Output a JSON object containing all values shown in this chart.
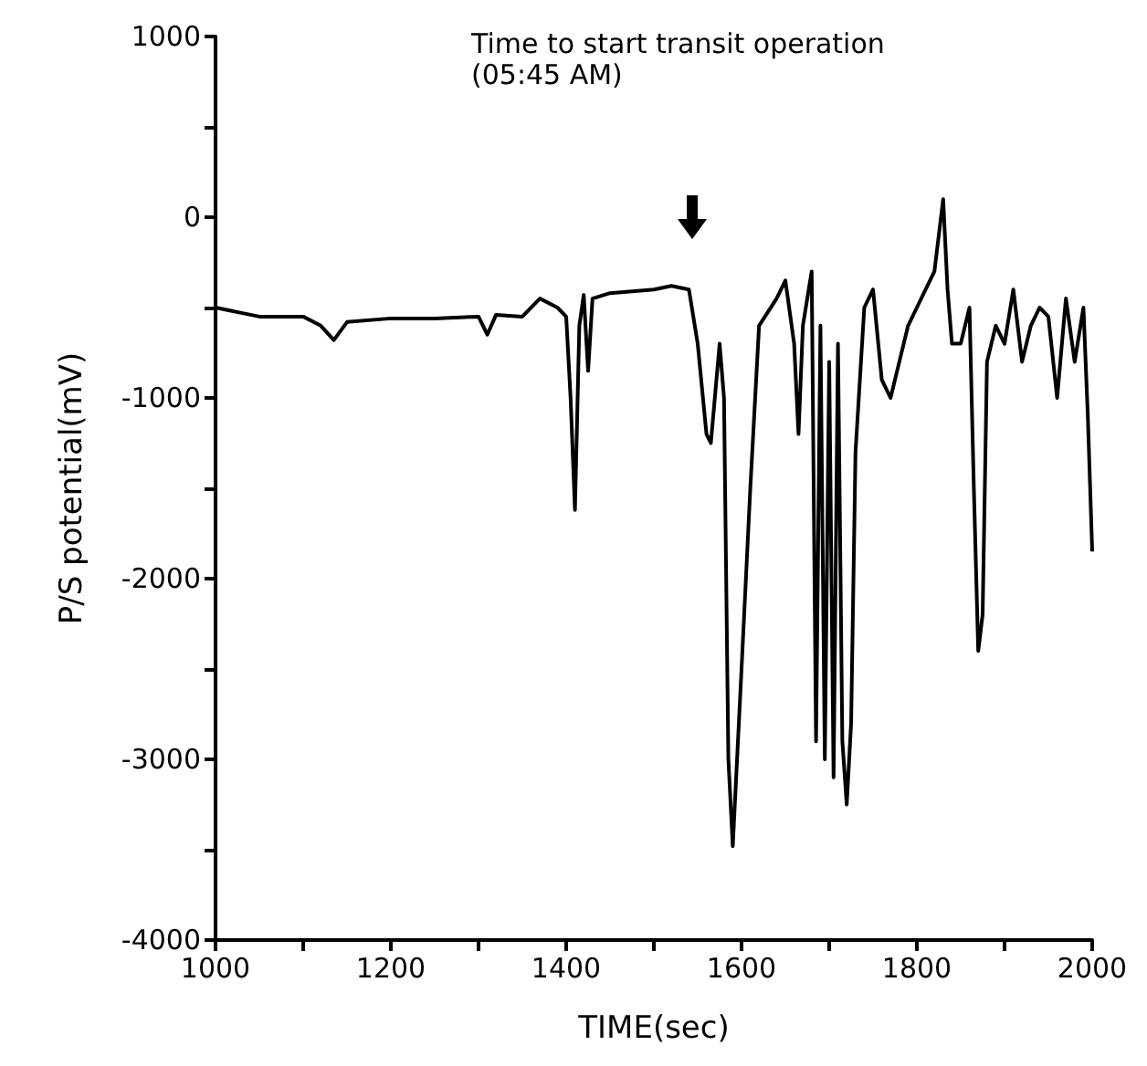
{
  "chart_data": {
    "type": "line",
    "xlabel": "TIME(sec)",
    "ylabel": "P/S potential(mV)",
    "annotations": [
      "Time to start transit operation\n(05:45 AM)"
    ],
    "xlim": [
      1000,
      2000
    ],
    "xticks": [
      1000,
      {
        "value": 1100,
        "label": null
      },
      1200,
      {
        "value": 1300,
        "label": null
      },
      1400,
      {
        "value": 1500,
        "label": null
      },
      1600,
      {
        "value": 1700,
        "label": null
      },
      1800,
      {
        "value": 1900,
        "label": null
      },
      2000
    ],
    "ylim": [
      -4000,
      1000
    ],
    "yticks": [
      -4000,
      {
        "value": -3500,
        "label": null
      },
      -3000,
      {
        "value": -2500,
        "label": null
      },
      -2000,
      {
        "value": -1500,
        "label": null
      },
      -1000,
      {
        "value": -500,
        "label": null
      },
      0,
      {
        "value": 500,
        "label": null
      },
      1000
    ],
    "grid": false,
    "marker": "none",
    "line_style": "solid",
    "series": [
      {
        "color": "#000000",
        "x": [
          1000,
          1050,
          1100,
          1120,
          1135,
          1150,
          1200,
          1250,
          1300,
          1310,
          1320,
          1350,
          1370,
          1390,
          1400,
          1405,
          1410,
          1415,
          1420,
          1425,
          1430,
          1450,
          1500,
          1520,
          1540,
          1550,
          1560,
          1565,
          1575,
          1580,
          1585,
          1590,
          1600,
          1610,
          1620,
          1640,
          1650,
          1660,
          1665,
          1670,
          1680,
          1685,
          1690,
          1695,
          1700,
          1705,
          1710,
          1715,
          1720,
          1725,
          1730,
          1740,
          1750,
          1760,
          1770,
          1780,
          1790,
          1800,
          1810,
          1820,
          1830,
          1835,
          1840,
          1850,
          1860,
          1865,
          1870,
          1875,
          1880,
          1890,
          1900,
          1910,
          1920,
          1930,
          1940,
          1950,
          1960,
          1970,
          1980,
          1990,
          1995,
          2000
        ],
        "values": [
          -500,
          -550,
          -550,
          -600,
          -680,
          -580,
          -560,
          -560,
          -550,
          -650,
          -540,
          -550,
          -450,
          -500,
          -550,
          -1000,
          -1620,
          -600,
          -430,
          -850,
          -450,
          -420,
          -400,
          -380,
          -400,
          -700,
          -1200,
          -1250,
          -700,
          -1000,
          -3000,
          -3480,
          -2500,
          -1500,
          -600,
          -450,
          -350,
          -700,
          -1200,
          -600,
          -300,
          -2900,
          -600,
          -3000,
          -800,
          -3100,
          -700,
          -2900,
          -3250,
          -2800,
          -1300,
          -500,
          -400,
          -900,
          -1000,
          -800,
          -600,
          -500,
          -400,
          -300,
          100,
          -400,
          -700,
          -700,
          -500,
          -1500,
          -2400,
          -2200,
          -800,
          -600,
          -700,
          -400,
          -800,
          -600,
          -500,
          -550,
          -1000,
          -450,
          -800,
          -500,
          -1100,
          -1850
        ]
      }
    ]
  }
}
